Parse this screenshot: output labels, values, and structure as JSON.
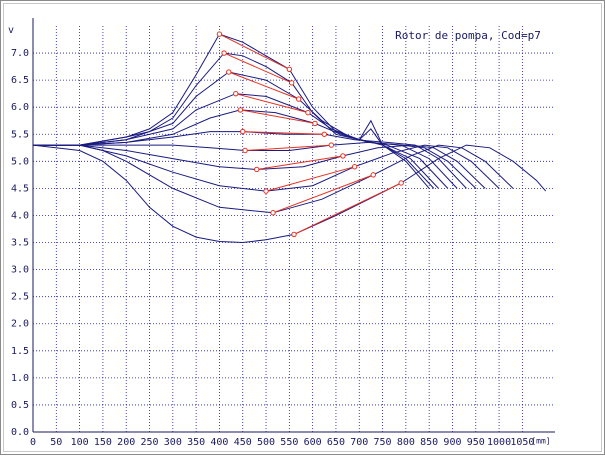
{
  "chart_data": {
    "type": "line",
    "title": "Rotor de pompa, Cod=p7",
    "xlabel": "[mm]",
    "ylabel": "v",
    "xlim": [
      0,
      1120
    ],
    "ylim": [
      0,
      7.5
    ],
    "xticks": [
      0,
      50,
      100,
      150,
      200,
      250,
      300,
      350,
      400,
      450,
      500,
      550,
      600,
      650,
      700,
      750,
      800,
      850,
      900,
      950,
      1000,
      1050
    ],
    "yticks": [
      {
        "value": 0,
        "label": "0.0"
      },
      {
        "value": 0.5,
        "label": "0.5"
      },
      {
        "value": 1,
        "label": "1.0"
      },
      {
        "value": 1.5,
        "label": "1.5"
      },
      {
        "value": 2,
        "label": "2.0"
      },
      {
        "value": 2.5,
        "label": "2.5"
      },
      {
        "value": 3,
        "label": "3.0"
      },
      {
        "value": 3.5,
        "label": "3.5"
      },
      {
        "value": 4,
        "label": "4.0"
      },
      {
        "value": 4.5,
        "label": "4.5"
      },
      {
        "value": 5,
        "label": "5.0"
      },
      {
        "value": 5.5,
        "label": "5.5"
      },
      {
        "value": 6,
        "label": "6.0"
      },
      {
        "value": 6.5,
        "label": "6.5"
      },
      {
        "value": 7,
        "label": "7.0"
      }
    ],
    "grid": true,
    "grid_color": "#1a1aa0",
    "series": [
      {
        "color": "#1a1a80",
        "x": [
          0,
          100,
          200,
          250,
          300,
          350,
          400,
          450,
          500,
          550,
          600,
          650,
          700,
          725,
          750,
          800,
          850
        ],
        "values": [
          5.3,
          5.3,
          5.45,
          5.6,
          5.9,
          6.6,
          7.35,
          7.2,
          6.95,
          6.7,
          6.0,
          5.55,
          5.4,
          5.75,
          5.3,
          5.0,
          4.5
        ]
      },
      {
        "color": "#1a1a80",
        "x": [
          0,
          100,
          200,
          250,
          300,
          350,
          410,
          450,
          500,
          555,
          600,
          650,
          700,
          725,
          750,
          800,
          860
        ],
        "values": [
          5.3,
          5.3,
          5.45,
          5.55,
          5.8,
          6.4,
          7.0,
          6.95,
          6.75,
          6.45,
          5.9,
          5.5,
          5.4,
          5.6,
          5.3,
          5.05,
          4.5
        ]
      },
      {
        "color": "#1a1a80",
        "x": [
          0,
          100,
          200,
          300,
          350,
          420,
          500,
          570,
          620,
          680,
          750,
          810,
          870
        ],
        "values": [
          5.3,
          5.3,
          5.4,
          5.7,
          6.2,
          6.65,
          6.5,
          6.15,
          5.75,
          5.45,
          5.3,
          5.05,
          4.5
        ]
      },
      {
        "color": "#1a1a80",
        "x": [
          0,
          100,
          200,
          300,
          350,
          435,
          500,
          590,
          640,
          700,
          760,
          830,
          890
        ],
        "values": [
          5.3,
          5.3,
          5.4,
          5.6,
          5.95,
          6.25,
          6.2,
          5.9,
          5.6,
          5.4,
          5.3,
          5.05,
          4.5
        ]
      },
      {
        "color": "#1a1a80",
        "x": [
          0,
          100,
          200,
          300,
          380,
          445,
          520,
          605,
          660,
          720,
          790,
          850,
          910
        ],
        "values": [
          5.3,
          5.3,
          5.35,
          5.5,
          5.8,
          5.95,
          5.9,
          5.7,
          5.5,
          5.35,
          5.3,
          5.05,
          4.5
        ]
      },
      {
        "color": "#1a1a80",
        "x": [
          0,
          100,
          200,
          300,
          380,
          450,
          540,
          625,
          690,
          760,
          820,
          870,
          930
        ],
        "values": [
          5.3,
          5.3,
          5.35,
          5.45,
          5.55,
          5.55,
          5.5,
          5.5,
          5.4,
          5.35,
          5.3,
          5.05,
          4.5
        ]
      },
      {
        "color": "#1a1a80",
        "x": [
          0,
          100,
          200,
          300,
          380,
          455,
          550,
          640,
          720,
          790,
          840,
          890,
          950
        ],
        "values": [
          5.3,
          5.3,
          5.3,
          5.3,
          5.25,
          5.2,
          5.2,
          5.3,
          5.35,
          5.3,
          5.25,
          5.0,
          4.5
        ]
      },
      {
        "color": "#1a1a80",
        "x": [
          0,
          100,
          200,
          300,
          400,
          480,
          580,
          665,
          740,
          810,
          860,
          910,
          970
        ],
        "values": [
          5.3,
          5.3,
          5.2,
          5.05,
          4.9,
          4.85,
          4.9,
          5.1,
          5.25,
          5.3,
          5.25,
          5.0,
          4.5
        ]
      },
      {
        "color": "#1a1a80",
        "x": [
          0,
          100,
          200,
          300,
          400,
          500,
          600,
          690,
          770,
          840,
          890,
          940,
          1000
        ],
        "values": [
          5.3,
          5.3,
          5.1,
          4.8,
          4.55,
          4.45,
          4.55,
          4.9,
          5.15,
          5.3,
          5.25,
          5.0,
          4.5
        ]
      },
      {
        "color": "#1a1a80",
        "x": [
          0,
          100,
          150,
          200,
          300,
          400,
          515,
          620,
          730,
          810,
          870,
          920,
          970,
          1030
        ],
        "values": [
          5.3,
          5.3,
          5.2,
          5.0,
          4.5,
          4.15,
          4.05,
          4.3,
          4.75,
          5.1,
          5.3,
          5.25,
          5.0,
          4.5
        ]
      },
      {
        "color": "#1a1a80",
        "x": [
          0,
          100,
          150,
          200,
          250,
          300,
          350,
          400,
          450,
          500,
          560,
          650,
          790,
          870,
          930,
          980,
          1030,
          1080,
          1100
        ],
        "values": [
          5.3,
          5.2,
          5.0,
          4.65,
          4.15,
          3.8,
          3.6,
          3.52,
          3.5,
          3.55,
          3.65,
          4.0,
          4.6,
          5.05,
          5.3,
          5.25,
          5.0,
          4.65,
          4.45
        ]
      }
    ],
    "markers": [
      {
        "color": "#e83020",
        "x": [
          400,
          550
        ],
        "values": [
          7.35,
          6.7
        ]
      },
      {
        "color": "#e83020",
        "x": [
          410,
          555
        ],
        "values": [
          7.0,
          6.45
        ]
      },
      {
        "color": "#e83020",
        "x": [
          420,
          570
        ],
        "values": [
          6.65,
          6.15
        ]
      },
      {
        "color": "#e83020",
        "x": [
          435,
          590
        ],
        "values": [
          6.25,
          5.9
        ]
      },
      {
        "color": "#e83020",
        "x": [
          445,
          605
        ],
        "values": [
          5.95,
          5.7
        ]
      },
      {
        "color": "#e83020",
        "x": [
          450,
          625
        ],
        "values": [
          5.55,
          5.5
        ]
      },
      {
        "color": "#e83020",
        "x": [
          455,
          640
        ],
        "values": [
          5.2,
          5.3
        ]
      },
      {
        "color": "#e83020",
        "x": [
          480,
          665
        ],
        "values": [
          4.85,
          5.1
        ]
      },
      {
        "color": "#e83020",
        "x": [
          500,
          690
        ],
        "values": [
          4.45,
          4.9
        ]
      },
      {
        "color": "#e83020",
        "x": [
          515,
          730
        ],
        "values": [
          4.05,
          4.75
        ]
      },
      {
        "color": "#e83020",
        "x": [
          560,
          790
        ],
        "values": [
          3.65,
          4.6
        ]
      }
    ]
  }
}
